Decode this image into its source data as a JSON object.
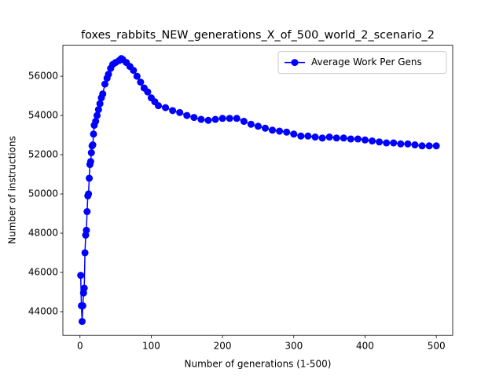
{
  "chart_data": {
    "type": "line",
    "title": "foxes_rabbits_NEW_generations_X_of_500_world_2_scenario_2",
    "xlabel": "Number of generations (1-500)",
    "ylabel": "Number of instructions",
    "legend": "upper right",
    "xlim": [
      -24,
      523
    ],
    "ylim": [
      42790,
      57580
    ],
    "xticks": [
      0,
      100,
      200,
      300,
      400,
      500
    ],
    "yticks": [
      44000,
      46000,
      48000,
      50000,
      52000,
      54000,
      56000
    ],
    "x": [
      1,
      2,
      3,
      4,
      5,
      6,
      7,
      8,
      9,
      10,
      11,
      12,
      13,
      14,
      15,
      16,
      17,
      18,
      19,
      20,
      22,
      24,
      26,
      28,
      30,
      32,
      35,
      38,
      40,
      43,
      46,
      50,
      55,
      58,
      60,
      65,
      70,
      75,
      80,
      85,
      90,
      95,
      100,
      105,
      110,
      120,
      130,
      140,
      150,
      160,
      170,
      180,
      190,
      200,
      210,
      220,
      230,
      240,
      250,
      260,
      270,
      280,
      290,
      300,
      310,
      320,
      330,
      340,
      350,
      360,
      370,
      380,
      390,
      400,
      410,
      420,
      430,
      440,
      450,
      460,
      470,
      480,
      490,
      500
    ],
    "series": [
      {
        "name": "Average Work Per Gens",
        "color": "#0000ff",
        "values": [
          45850,
          44300,
          43500,
          44300,
          44950,
          45200,
          47000,
          47900,
          48150,
          49100,
          49900,
          50000,
          50800,
          51500,
          51650,
          52100,
          52450,
          52500,
          53050,
          53500,
          53700,
          54000,
          54300,
          54600,
          54900,
          55100,
          55600,
          55900,
          56100,
          56400,
          56600,
          56700,
          56800,
          56900,
          56850,
          56700,
          56500,
          56300,
          56000,
          55700,
          55400,
          55200,
          54900,
          54700,
          54500,
          54400,
          54250,
          54150,
          54000,
          53900,
          53800,
          53750,
          53800,
          53850,
          53850,
          53850,
          53700,
          53550,
          53450,
          53350,
          53250,
          53200,
          53150,
          53050,
          52950,
          52950,
          52900,
          52850,
          52900,
          52850,
          52850,
          52800,
          52800,
          52750,
          52700,
          52650,
          52600,
          52600,
          52550,
          52550,
          52500,
          52450,
          52450,
          52450
        ]
      }
    ]
  }
}
